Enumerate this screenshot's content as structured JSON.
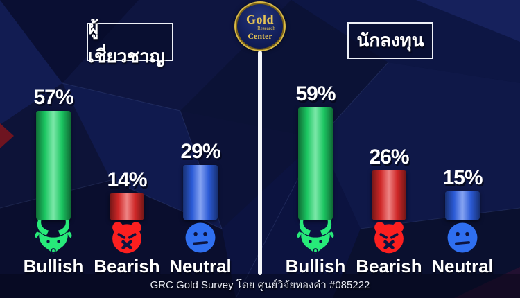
{
  "logo": {
    "word1": "Gold",
    "word2": "Research",
    "word3": "Center",
    "ring_color": "#d8b844"
  },
  "footer": {
    "text": "GRC Gold Survey โดย ศูนย์วิจัยทองคำ #085222"
  },
  "colors": {
    "background": "#0c1238",
    "divider": "#f4f6fb",
    "bullish_green": "#1ed76a",
    "bearish_red": "#e12b2b",
    "neutral_blue": "#2f62e8",
    "text": "#ffffff",
    "logo_gold": "#e6c455"
  },
  "chart_data": [
    {
      "type": "bar",
      "title": "ผู้เชี่ยวชาญ",
      "categories": [
        "Bullish",
        "Bearish",
        "Neutral"
      ],
      "values": [
        57,
        14,
        29
      ],
      "value_labels": [
        "57%",
        "14%",
        "29%"
      ],
      "bar_colors": [
        "#1ed76a",
        "#e12b2b",
        "#2f62e8"
      ],
      "icon_colors": [
        "#27ea79",
        "#fb1f1f",
        "#2f6ff0"
      ],
      "icons": [
        "bull-icon",
        "bear-icon",
        "neutral-face-icon"
      ],
      "unit": "%",
      "ylim": [
        0,
        100
      ],
      "legend": "none",
      "grid": false
    },
    {
      "type": "bar",
      "title": "นักลงทุน",
      "categories": [
        "Bullish",
        "Bearish",
        "Neutral"
      ],
      "values": [
        59,
        26,
        15
      ],
      "value_labels": [
        "59%",
        "26%",
        "15%"
      ],
      "bar_colors": [
        "#1ed76a",
        "#e12b2b",
        "#2f62e8"
      ],
      "icon_colors": [
        "#27ea79",
        "#fb1f1f",
        "#2f6ff0"
      ],
      "icons": [
        "bull-icon",
        "bear-icon",
        "neutral-face-icon"
      ],
      "unit": "%",
      "ylim": [
        0,
        100
      ],
      "legend": "none",
      "grid": false
    }
  ]
}
